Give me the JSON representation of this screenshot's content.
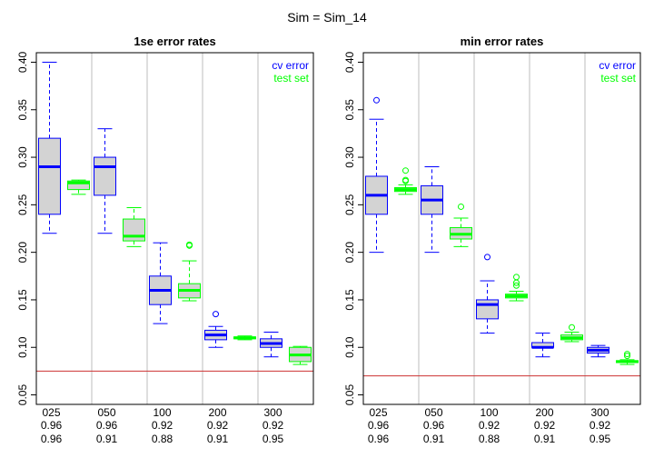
{
  "suptitle": "Sim = Sim_14",
  "colors": {
    "cv": "#0000FF",
    "test": "#00FF00",
    "box_fill": "#D3D3D3",
    "divider": "#BEBEBE",
    "reference_line": "#CD3333",
    "axis": "#000000"
  },
  "chart_data": [
    {
      "type": "boxplot",
      "title": "1se error rates",
      "ylim": [
        0.04,
        0.41
      ],
      "yticks": [
        "0.05",
        "0.10",
        "0.15",
        "0.20",
        "0.25",
        "0.30",
        "0.35",
        "0.40"
      ],
      "ytick_values": [
        0.05,
        0.1,
        0.15,
        0.2,
        0.25,
        0.3,
        0.35,
        0.4
      ],
      "grid": false,
      "legend_position": "top-right",
      "legend": [
        {
          "label": "cv error",
          "color_key": "cv"
        },
        {
          "label": "test set",
          "color_key": "test"
        }
      ],
      "reference_line": 0.075,
      "groups": [
        {
          "label": "025",
          "row2": "0.96",
          "row3": "0.96"
        },
        {
          "label": "050",
          "row2": "0.96",
          "row3": "0.91"
        },
        {
          "label": "100",
          "row2": "0.92",
          "row3": "0.88"
        },
        {
          "label": "200",
          "row2": "0.92",
          "row3": "0.91"
        },
        {
          "label": "300",
          "row2": "0.92",
          "row3": "0.95"
        }
      ],
      "series": [
        {
          "name": "cv error",
          "color_key": "cv",
          "boxes": [
            {
              "min": 0.22,
              "q1": 0.24,
              "median": 0.29,
              "q3": 0.32,
              "max": 0.4,
              "outliers": []
            },
            {
              "min": 0.22,
              "q1": 0.26,
              "median": 0.29,
              "q3": 0.3,
              "max": 0.33,
              "outliers": []
            },
            {
              "min": 0.125,
              "q1": 0.145,
              "median": 0.16,
              "q3": 0.175,
              "max": 0.21,
              "outliers": []
            },
            {
              "min": 0.1,
              "q1": 0.108,
              "median": 0.113,
              "q3": 0.118,
              "max": 0.122,
              "outliers": [
                0.135
              ]
            },
            {
              "min": 0.09,
              "q1": 0.1,
              "median": 0.104,
              "q3": 0.109,
              "max": 0.116,
              "outliers": []
            }
          ]
        },
        {
          "name": "test set",
          "color_key": "test",
          "boxes": [
            {
              "min": 0.261,
              "q1": 0.266,
              "median": 0.273,
              "q3": 0.275,
              "max": 0.276,
              "outliers": []
            },
            {
              "min": 0.206,
              "q1": 0.212,
              "median": 0.217,
              "q3": 0.235,
              "max": 0.247,
              "outliers": []
            },
            {
              "min": 0.149,
              "q1": 0.152,
              "median": 0.16,
              "q3": 0.167,
              "max": 0.191,
              "outliers": [
                0.207,
                0.208
              ]
            },
            {
              "min": 0.108,
              "q1": 0.109,
              "median": 0.11,
              "q3": 0.111,
              "max": 0.112,
              "outliers": []
            },
            {
              "min": 0.082,
              "q1": 0.085,
              "median": 0.092,
              "q3": 0.1,
              "max": 0.101,
              "outliers": []
            }
          ]
        }
      ]
    },
    {
      "type": "boxplot",
      "title": "min error rates",
      "ylim": [
        0.04,
        0.41
      ],
      "yticks": [
        "0.05",
        "0.10",
        "0.15",
        "0.20",
        "0.25",
        "0.30",
        "0.35",
        "0.40"
      ],
      "ytick_values": [
        0.05,
        0.1,
        0.15,
        0.2,
        0.25,
        0.3,
        0.35,
        0.4
      ],
      "grid": false,
      "legend_position": "top-right",
      "legend": [
        {
          "label": "cv error",
          "color_key": "cv"
        },
        {
          "label": "test set",
          "color_key": "test"
        }
      ],
      "reference_line": 0.07,
      "groups": [
        {
          "label": "025",
          "row2": "0.96",
          "row3": "0.96"
        },
        {
          "label": "050",
          "row2": "0.96",
          "row3": "0.91"
        },
        {
          "label": "100",
          "row2": "0.92",
          "row3": "0.88"
        },
        {
          "label": "200",
          "row2": "0.92",
          "row3": "0.91"
        },
        {
          "label": "300",
          "row2": "0.92",
          "row3": "0.95"
        }
      ],
      "series": [
        {
          "name": "cv error",
          "color_key": "cv",
          "boxes": [
            {
              "min": 0.2,
              "q1": 0.24,
              "median": 0.26,
              "q3": 0.28,
              "max": 0.34,
              "outliers": [
                0.36
              ]
            },
            {
              "min": 0.2,
              "q1": 0.24,
              "median": 0.255,
              "q3": 0.27,
              "max": 0.29,
              "outliers": []
            },
            {
              "min": 0.115,
              "q1": 0.13,
              "median": 0.145,
              "q3": 0.15,
              "max": 0.17,
              "outliers": [
                0.195
              ]
            },
            {
              "min": 0.09,
              "q1": 0.1,
              "median": 0.1,
              "q3": 0.105,
              "max": 0.115,
              "outliers": []
            },
            {
              "min": 0.09,
              "q1": 0.094,
              "median": 0.097,
              "q3": 0.1,
              "max": 0.102,
              "outliers": []
            }
          ]
        },
        {
          "name": "test set",
          "color_key": "test",
          "boxes": [
            {
              "min": 0.261,
              "q1": 0.264,
              "median": 0.266,
              "q3": 0.268,
              "max": 0.271,
              "outliers": [
                0.275,
                0.276,
                0.286
              ]
            },
            {
              "min": 0.206,
              "q1": 0.214,
              "median": 0.219,
              "q3": 0.226,
              "max": 0.236,
              "outliers": [
                0.248
              ]
            },
            {
              "min": 0.149,
              "q1": 0.152,
              "median": 0.154,
              "q3": 0.156,
              "max": 0.159,
              "outliers": [
                0.165,
                0.168,
                0.174
              ]
            },
            {
              "min": 0.106,
              "q1": 0.108,
              "median": 0.11,
              "q3": 0.113,
              "max": 0.116,
              "outliers": [
                0.121
              ]
            },
            {
              "min": 0.082,
              "q1": 0.084,
              "median": 0.085,
              "q3": 0.086,
              "max": 0.087,
              "outliers": [
                0.091,
                0.093
              ]
            }
          ]
        }
      ]
    }
  ]
}
